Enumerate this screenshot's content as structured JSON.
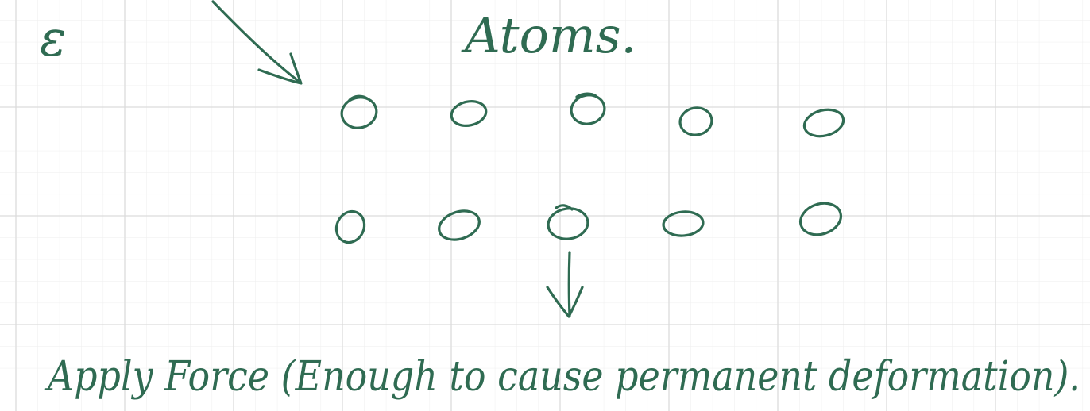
{
  "notes": {
    "symbol": "ε",
    "title": "Atoms.",
    "caption": "Apply Force (Enough to cause permanent deformation)."
  },
  "atoms": {
    "rows": 2,
    "columns": 5
  },
  "colors": {
    "ink": "#2f6b52",
    "grid_minor": "#eeeeee",
    "grid_major": "#dcdcdc",
    "background": "#ffffff"
  },
  "icons": {
    "incoming_arrow": "diagonal-arrow-icon",
    "force_arrow": "down-arrow-icon"
  }
}
